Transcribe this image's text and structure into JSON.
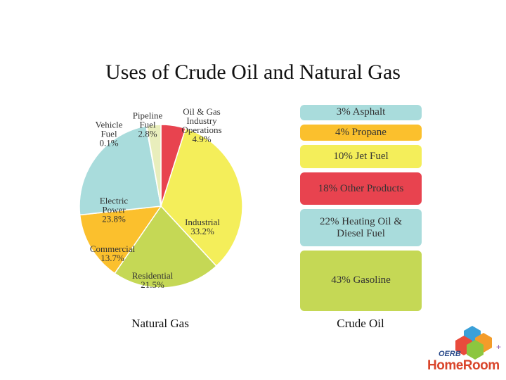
{
  "title": "Uses of Crude Oil and Natural Gas",
  "chart_data": [
    {
      "type": "pie",
      "title": "Natural Gas",
      "categories": [
        "Oil & Gas Industry Operations",
        "Industrial",
        "Residential",
        "Commercial",
        "Electric Power",
        "Vehicle Fuel",
        "Pipeline Fuel"
      ],
      "values": [
        4.9,
        33.2,
        21.5,
        13.7,
        23.8,
        0.1,
        2.8
      ],
      "value_labels": [
        "4.9%",
        "33.2%",
        "21.5%",
        "13.7%",
        "23.8%",
        "0.1%",
        "2.8%"
      ],
      "colors": [
        "#e8434f",
        "#f4ee5a",
        "#c5d855",
        "#fbc02d",
        "#a9dcdc",
        "#fbd9a0",
        "#e9eebc"
      ]
    },
    {
      "type": "block",
      "title": "Crude Oil",
      "categories": [
        "Asphalt",
        "Propane",
        "Jet Fuel",
        "Other Products",
        "Heating Oil & Diesel Fuel",
        "Gasoline"
      ],
      "values": [
        3,
        4,
        10,
        18,
        22,
        43
      ],
      "value_labels": [
        "3%",
        "4%",
        "10%",
        "18%",
        "22%",
        "43%"
      ],
      "colors": [
        "#a9dcdc",
        "#fbc02d",
        "#f4ee5a",
        "#e8434f",
        "#a9dcdc",
        "#c5d855"
      ]
    }
  ],
  "logo": {
    "brand": "OERB",
    "name": "HomeRoom"
  }
}
